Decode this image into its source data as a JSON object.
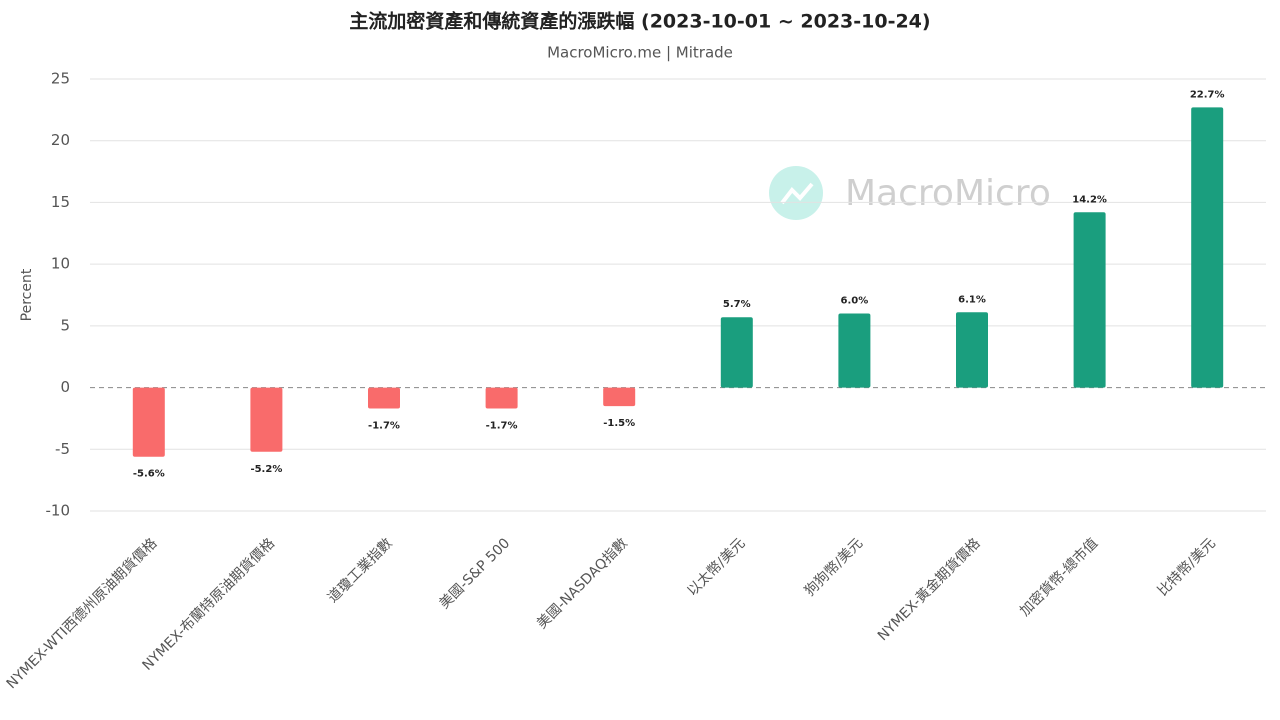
{
  "chart_data": {
    "type": "bar",
    "title": "主流加密資產和傳統資產的漲跌幅 (2023-10-01 ~ 2023-10-24)",
    "subtitle": "MacroMicro.me | Mitrade",
    "watermark": "MacroMicro",
    "y_label": "Percent",
    "categories": [
      "NYMEX-WTI西德州原油期貨價格",
      "NYMEX-布蘭特原油期貨價格",
      "道瓊工業指數",
      "美國-S&P 500",
      "美國-NASDAQ指數",
      "以太幣/美元",
      "狗狗幣/美元",
      "NYMEX-黃金期貨價格",
      "加密貨幣-總市值",
      "比特幣/美元"
    ],
    "values": [
      -5.6,
      -5.2,
      -1.7,
      -1.7,
      -1.5,
      5.7,
      6.0,
      6.1,
      14.2,
      22.7
    ],
    "value_labels": [
      "-5.6%",
      "-5.2%",
      "-1.7%",
      "-1.7%",
      "-1.5%",
      "5.7%",
      "6.0%",
      "6.1%",
      "14.2%",
      "22.7%"
    ],
    "colors": [
      "#f96b6b",
      "#f96b6b",
      "#f96b6b",
      "#f96b6b",
      "#f96b6b",
      "#1a9e7e",
      "#1a9e7e",
      "#1a9e7e",
      "#1a9e7e",
      "#1a9e7e"
    ],
    "ylim": [
      -10,
      25
    ],
    "yticks": [
      -10,
      -5,
      0,
      5,
      10,
      15,
      20,
      25
    ],
    "grid": true
  }
}
